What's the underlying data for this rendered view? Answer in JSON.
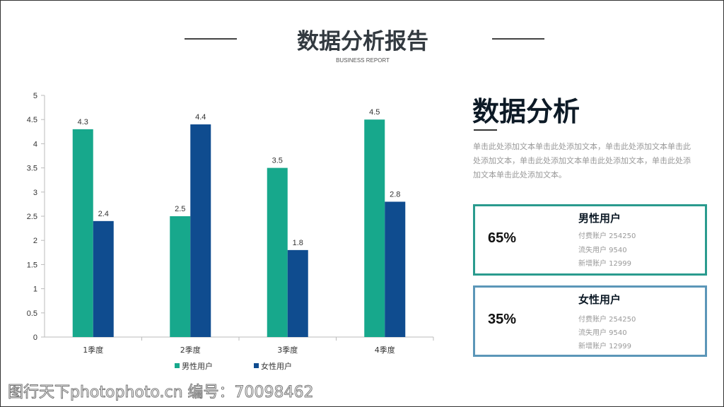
{
  "header": {
    "title": "数据分析报告",
    "subtitle": "BUSINESS REPORT"
  },
  "right": {
    "title": "数据分析",
    "description": "单击此处添加文本单击此处添加文本，单击此处添加文本单击此处添加文本，单击此处添加文本单击此处添加文本，单击此处添加文本单击此处添加文本。",
    "cards": [
      {
        "percent": "65%",
        "title": "男性用户",
        "lines": [
          "付费账户 254250",
          "流失用户 9540",
          "新增账户 12999"
        ]
      },
      {
        "percent": "35%",
        "title": "女性用户",
        "lines": [
          "付费账户 254250",
          "流失用户 9540",
          "新增账户 12999"
        ]
      }
    ]
  },
  "watermark": "图行天下photophoto.cn 编号：70098462",
  "chart_data": {
    "type": "bar",
    "categories": [
      "1季度",
      "2季度",
      "3季度",
      "4季度"
    ],
    "series": [
      {
        "name": "男性用户",
        "values": [
          4.3,
          2.5,
          3.5,
          4.5
        ],
        "color": "#17a88c"
      },
      {
        "name": "女性用户",
        "values": [
          2.4,
          4.4,
          1.8,
          2.8
        ],
        "color": "#0f4c8f"
      }
    ],
    "ylim": [
      0,
      5
    ],
    "yticks": [
      0,
      0.5,
      1,
      1.5,
      2,
      2.5,
      3,
      3.5,
      4,
      4.5,
      5
    ],
    "legend": "bottom",
    "grid": false
  }
}
